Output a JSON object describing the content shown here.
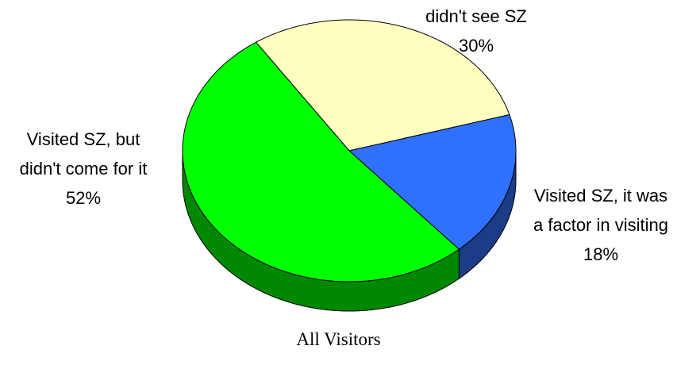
{
  "chart_data": {
    "type": "pie",
    "title": "All Visitors",
    "categories": [
      "didn't see SZ",
      "Visited SZ, it was a factor in visiting",
      "Visited SZ, but didn't come for it"
    ],
    "values": [
      30,
      18,
      52
    ],
    "value_labels": [
      "30%",
      "18%",
      "52%"
    ],
    "colors": [
      "#ffffc0",
      "#3070ff",
      "#00ff00"
    ],
    "side_colors": [
      "#c8c890",
      "#1c3c88",
      "#008800"
    ]
  }
}
